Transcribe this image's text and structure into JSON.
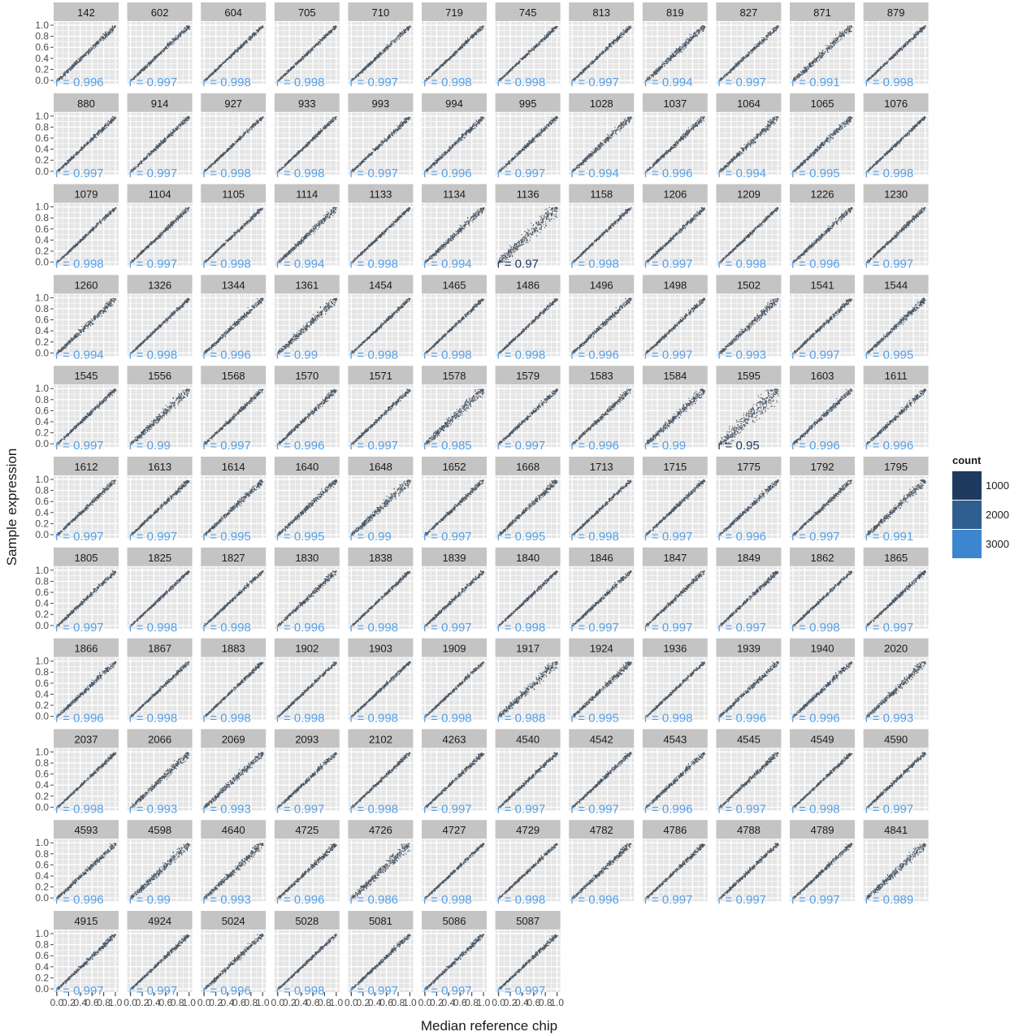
{
  "chart_data": {
    "type": "heatmap",
    "facet_type": "hexbin-scatter",
    "xlabel": "Median reference chip",
    "ylabel": "Sample expression",
    "xlim": [
      0,
      1
    ],
    "ylim": [
      0,
      1
    ],
    "x_ticks": [
      "0.0",
      "0.2",
      "0.4",
      "0.6",
      "0.8",
      "1.0"
    ],
    "y_ticks": [
      "0.0",
      "0.2",
      "0.4",
      "0.6",
      "0.8",
      "1.0"
    ],
    "grid": true,
    "legend": {
      "title": "count",
      "position": "right",
      "entries": [
        {
          "label": "1000",
          "color": "#1f3a5f"
        },
        {
          "label": "2000",
          "color": "#2e5f90"
        },
        {
          "label": "3000",
          "color": "#3e85cf"
        }
      ]
    },
    "colors": {
      "panel_bg": "#e5e5e5",
      "strip_bg": "#c4c4c4",
      "points": "#4a5866",
      "r_label_light": "#56a1e8",
      "r_label_dark": "#1f3a5f"
    },
    "panels": [
      {
        "id": "142",
        "r": "0.996"
      },
      {
        "id": "602",
        "r": "0.997"
      },
      {
        "id": "604",
        "r": "0.998"
      },
      {
        "id": "705",
        "r": "0.998"
      },
      {
        "id": "710",
        "r": "0.997"
      },
      {
        "id": "719",
        "r": "0.998"
      },
      {
        "id": "745",
        "r": "0.998"
      },
      {
        "id": "813",
        "r": "0.997"
      },
      {
        "id": "819",
        "r": "0.994"
      },
      {
        "id": "827",
        "r": "0.997"
      },
      {
        "id": "871",
        "r": "0.991"
      },
      {
        "id": "879",
        "r": "0.998"
      },
      {
        "id": "880",
        "r": "0.997"
      },
      {
        "id": "914",
        "r": "0.997"
      },
      {
        "id": "927",
        "r": "0.998"
      },
      {
        "id": "933",
        "r": "0.998"
      },
      {
        "id": "993",
        "r": "0.997"
      },
      {
        "id": "994",
        "r": "0.996"
      },
      {
        "id": "995",
        "r": "0.997"
      },
      {
        "id": "1028",
        "r": "0.994"
      },
      {
        "id": "1037",
        "r": "0.996"
      },
      {
        "id": "1064",
        "r": "0.994"
      },
      {
        "id": "1065",
        "r": "0.995"
      },
      {
        "id": "1076",
        "r": "0.998"
      },
      {
        "id": "1079",
        "r": "0.998"
      },
      {
        "id": "1104",
        "r": "0.997"
      },
      {
        "id": "1105",
        "r": "0.998"
      },
      {
        "id": "1114",
        "r": "0.994"
      },
      {
        "id": "1133",
        "r": "0.998"
      },
      {
        "id": "1134",
        "r": "0.994"
      },
      {
        "id": "1136",
        "r": "0.97"
      },
      {
        "id": "1158",
        "r": "0.998"
      },
      {
        "id": "1206",
        "r": "0.997"
      },
      {
        "id": "1209",
        "r": "0.998"
      },
      {
        "id": "1226",
        "r": "0.996"
      },
      {
        "id": "1230",
        "r": "0.997"
      },
      {
        "id": "1260",
        "r": "0.994"
      },
      {
        "id": "1326",
        "r": "0.998"
      },
      {
        "id": "1344",
        "r": "0.996"
      },
      {
        "id": "1361",
        "r": "0.99"
      },
      {
        "id": "1454",
        "r": "0.998"
      },
      {
        "id": "1465",
        "r": "0.998"
      },
      {
        "id": "1486",
        "r": "0.998"
      },
      {
        "id": "1496",
        "r": "0.996"
      },
      {
        "id": "1498",
        "r": "0.997"
      },
      {
        "id": "1502",
        "r": "0.993"
      },
      {
        "id": "1541",
        "r": "0.997"
      },
      {
        "id": "1544",
        "r": "0.995"
      },
      {
        "id": "1545",
        "r": "0.997"
      },
      {
        "id": "1556",
        "r": "0.99"
      },
      {
        "id": "1568",
        "r": "0.997"
      },
      {
        "id": "1570",
        "r": "0.996"
      },
      {
        "id": "1571",
        "r": "0.997"
      },
      {
        "id": "1578",
        "r": "0.985"
      },
      {
        "id": "1579",
        "r": "0.997"
      },
      {
        "id": "1583",
        "r": "0.996"
      },
      {
        "id": "1584",
        "r": "0.99"
      },
      {
        "id": "1595",
        "r": "0.95"
      },
      {
        "id": "1603",
        "r": "0.996"
      },
      {
        "id": "1611",
        "r": "0.996"
      },
      {
        "id": "1612",
        "r": "0.997"
      },
      {
        "id": "1613",
        "r": "0.997"
      },
      {
        "id": "1614",
        "r": "0.995"
      },
      {
        "id": "1640",
        "r": "0.995"
      },
      {
        "id": "1648",
        "r": "0.99"
      },
      {
        "id": "1652",
        "r": "0.997"
      },
      {
        "id": "1668",
        "r": "0.995"
      },
      {
        "id": "1713",
        "r": "0.998"
      },
      {
        "id": "1715",
        "r": "0.997"
      },
      {
        "id": "1775",
        "r": "0.996"
      },
      {
        "id": "1792",
        "r": "0.997"
      },
      {
        "id": "1795",
        "r": "0.991"
      },
      {
        "id": "1805",
        "r": "0.997"
      },
      {
        "id": "1825",
        "r": "0.998"
      },
      {
        "id": "1827",
        "r": "0.998"
      },
      {
        "id": "1830",
        "r": "0.996"
      },
      {
        "id": "1838",
        "r": "0.998"
      },
      {
        "id": "1839",
        "r": "0.997"
      },
      {
        "id": "1840",
        "r": "0.998"
      },
      {
        "id": "1846",
        "r": "0.997"
      },
      {
        "id": "1847",
        "r": "0.997"
      },
      {
        "id": "1849",
        "r": "0.997"
      },
      {
        "id": "1862",
        "r": "0.998"
      },
      {
        "id": "1865",
        "r": "0.997"
      },
      {
        "id": "1866",
        "r": "0.996"
      },
      {
        "id": "1867",
        "r": "0.998"
      },
      {
        "id": "1883",
        "r": "0.998"
      },
      {
        "id": "1902",
        "r": "0.998"
      },
      {
        "id": "1903",
        "r": "0.998"
      },
      {
        "id": "1909",
        "r": "0.998"
      },
      {
        "id": "1917",
        "r": "0.988"
      },
      {
        "id": "1924",
        "r": "0.995"
      },
      {
        "id": "1936",
        "r": "0.998"
      },
      {
        "id": "1939",
        "r": "0.996"
      },
      {
        "id": "1940",
        "r": "0.996"
      },
      {
        "id": "2020",
        "r": "0.993"
      },
      {
        "id": "2037",
        "r": "0.998"
      },
      {
        "id": "2066",
        "r": "0.993"
      },
      {
        "id": "2069",
        "r": "0.993"
      },
      {
        "id": "2093",
        "r": "0.997"
      },
      {
        "id": "2102",
        "r": "0.998"
      },
      {
        "id": "4263",
        "r": "0.997"
      },
      {
        "id": "4540",
        "r": "0.997"
      },
      {
        "id": "4542",
        "r": "0.997"
      },
      {
        "id": "4543",
        "r": "0.996"
      },
      {
        "id": "4545",
        "r": "0.997"
      },
      {
        "id": "4549",
        "r": "0.998"
      },
      {
        "id": "4590",
        "r": "0.997"
      },
      {
        "id": "4593",
        "r": "0.996"
      },
      {
        "id": "4598",
        "r": "0.99"
      },
      {
        "id": "4640",
        "r": "0.993"
      },
      {
        "id": "4725",
        "r": "0.996"
      },
      {
        "id": "4726",
        "r": "0.986"
      },
      {
        "id": "4727",
        "r": "0.998"
      },
      {
        "id": "4729",
        "r": "0.998"
      },
      {
        "id": "4782",
        "r": "0.996"
      },
      {
        "id": "4786",
        "r": "0.997"
      },
      {
        "id": "4788",
        "r": "0.997"
      },
      {
        "id": "4789",
        "r": "0.997"
      },
      {
        "id": "4841",
        "r": "0.989"
      },
      {
        "id": "4915",
        "r": "0.997"
      },
      {
        "id": "4924",
        "r": "0.997"
      },
      {
        "id": "5024",
        "r": "0.996"
      },
      {
        "id": "5028",
        "r": "0.998"
      },
      {
        "id": "5081",
        "r": "0.997"
      },
      {
        "id": "5086",
        "r": "0.997"
      },
      {
        "id": "5087",
        "r": "0.997"
      }
    ]
  }
}
